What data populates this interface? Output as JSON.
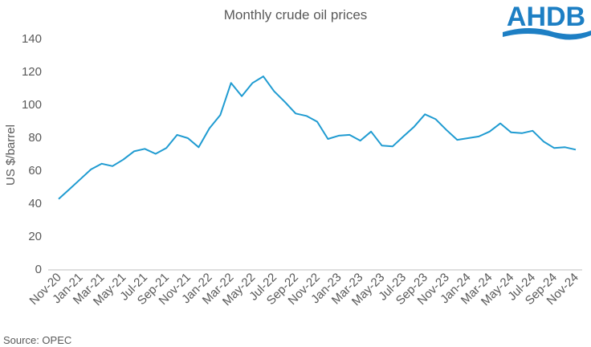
{
  "logo": "AHDB",
  "chart_data": {
    "type": "line",
    "title": "Monthly crude oil prices",
    "y_label": "US $/barrel",
    "source": "Source: OPEC",
    "categories": [
      "Nov-20",
      null,
      "Jan-21",
      null,
      "Mar-21",
      null,
      "May-21",
      null,
      "Jul-21",
      null,
      "Sep-21",
      null,
      "Nov-21",
      null,
      "Jan-22",
      null,
      "Mar-22",
      null,
      "May-22",
      null,
      "Jul-22",
      null,
      "Sep-22",
      null,
      "Nov-22",
      null,
      "Jan-23",
      null,
      "Mar-23",
      null,
      "May-23",
      null,
      "Jul-23",
      null,
      "Sep-23",
      null,
      "Nov-23",
      null,
      "Jan-24",
      null,
      "Mar-24",
      null,
      "May-24",
      null,
      "Jul-24",
      null,
      "Sep-24",
      null,
      "Nov-24"
    ],
    "values": [
      43,
      49,
      55,
      61,
      64.5,
      63,
      67,
      72,
      73.5,
      70.5,
      74,
      82,
      80,
      74.5,
      86,
      94,
      113.5,
      105.5,
      113.5,
      117.5,
      108.5,
      102,
      95,
      93.5,
      90,
      79.5,
      81.5,
      82,
      78.5,
      84,
      75.5,
      75,
      81,
      87,
      94.5,
      91.5,
      85,
      79,
      80,
      81,
      84,
      89,
      83.5,
      83,
      84.5,
      78,
      74,
      74.5,
      73
    ],
    "color": "#1f9bd1",
    "ylim": [
      0,
      140
    ],
    "yticks": [
      0,
      20,
      40,
      60,
      80,
      100,
      120,
      140
    ],
    "grid": false
  }
}
